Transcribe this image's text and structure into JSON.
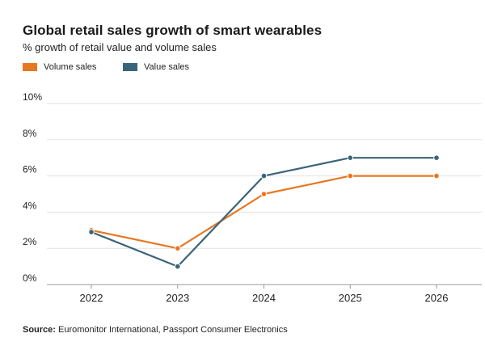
{
  "chart_data": {
    "type": "line",
    "title": "Global retail sales growth of smart wearables",
    "subtitle": "% growth of retail value and volume sales",
    "categories": [
      "2022",
      "2023",
      "2024",
      "2025",
      "2026"
    ],
    "series": [
      {
        "name": "Volume sales",
        "color": "#e87722",
        "values": [
          3,
          2,
          5,
          6,
          6
        ]
      },
      {
        "name": "Value sales",
        "color": "#3a6479",
        "values": [
          2.9,
          1,
          6,
          7,
          7
        ]
      }
    ],
    "yticks": [
      "0%",
      "2%",
      "4%",
      "6%",
      "8%",
      "10%"
    ],
    "ylim": [
      0,
      10
    ],
    "xlabel": "",
    "ylabel": "",
    "grid": true,
    "legend": "top-left"
  },
  "source": {
    "label": "Source:",
    "text": "Euromonitor International, Passport Consumer Electronics"
  }
}
